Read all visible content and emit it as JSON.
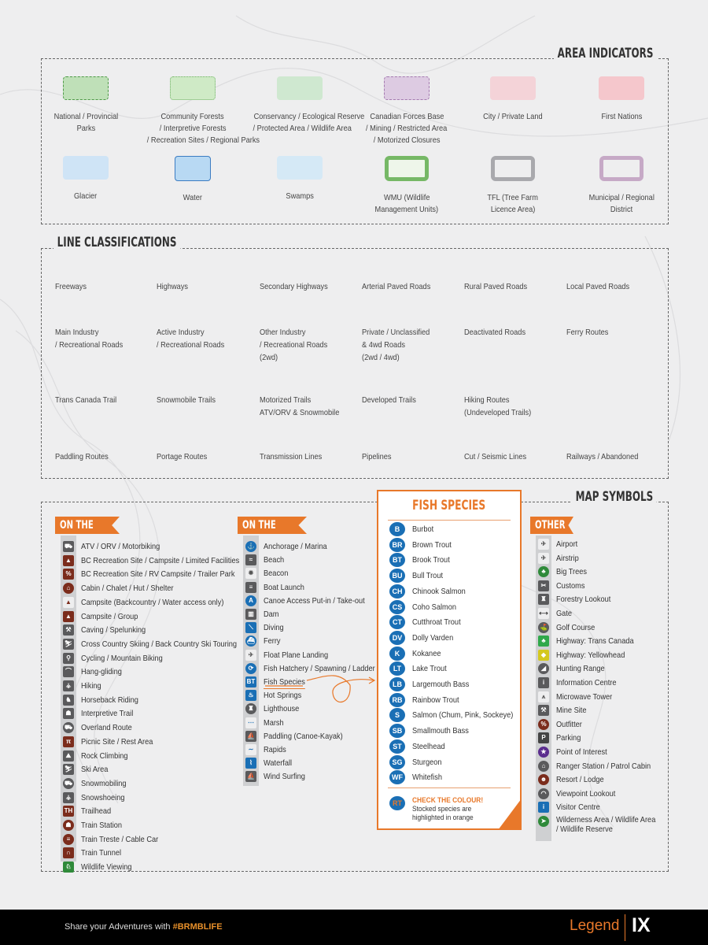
{
  "sections": {
    "area": "AREA INDICATORS",
    "lines": "LINE CLASSIFICATIONS",
    "symbols": "MAP SYMBOLS"
  },
  "area_indicators": [
    {
      "label": [
        "National / Provincial",
        "Parks"
      ],
      "fill": "#bfe0b8",
      "border": "#4f9a48",
      "style": "dashed"
    },
    {
      "label": [
        "Community Forests",
        "/ Interpretive Forests",
        "/ Recreation Sites / Regional Parks"
      ],
      "fill": "#cfeac6",
      "border": "#6fb064",
      "style": "dotted"
    },
    {
      "label": [
        "Conservancy / Ecological Reserve",
        "/ Protected Area / Wildlife Area"
      ],
      "fill": "#cfe8d0",
      "border": "#cfe8d0",
      "style": "solid"
    },
    {
      "label": [
        "Canadian Forces Base",
        "/ Mining / Restricted Area",
        "/ Motorized Closures"
      ],
      "fill": "#ddcbe2",
      "border": "#a57bb0",
      "style": "dashed"
    },
    {
      "label": [
        "City / Private Land"
      ],
      "fill": "#f4d3d8",
      "border": "#f4d3d8",
      "style": "solid"
    },
    {
      "label": [
        "First Nations"
      ],
      "fill": "#f5c7cc",
      "border": "#f5c7cc",
      "style": "solid"
    },
    {
      "label": [
        "Glacier"
      ],
      "fill": "#cfe4f6",
      "border": "#cfe4f6",
      "style": "solid"
    },
    {
      "label": [
        "Water"
      ],
      "fill": "#b8d9f3",
      "border": "#3b7cc2",
      "style": "solid"
    },
    {
      "label": [
        "Swamps"
      ],
      "fill": "#d5e9f6",
      "border": "#d5e9f6",
      "style": "solid"
    },
    {
      "label": [
        "WMU (Wildlife",
        "Management Units)"
      ],
      "fill": "#eef6ea",
      "border": "#76b866",
      "style": "thick"
    },
    {
      "label": [
        "TFL (Tree Farm",
        "Licence Area)"
      ],
      "fill": "#eeeeef",
      "border": "#a9a9ad",
      "style": "thick"
    },
    {
      "label": [
        "Municipal / Regional",
        "District"
      ],
      "fill": "#eeeeef",
      "border": "#c6a9c6",
      "style": "thick"
    }
  ],
  "line_classifications": [
    {
      "label": [
        "Freeways"
      ],
      "kind": "freeway"
    },
    {
      "label": [
        "Highways"
      ],
      "kind": "highway"
    },
    {
      "label": [
        "Secondary Highways"
      ],
      "kind": "secondary"
    },
    {
      "label": [
        "Arterial Paved Roads"
      ],
      "kind": "arterial"
    },
    {
      "label": [
        "Rural Paved Roads"
      ],
      "kind": "rural"
    },
    {
      "label": [
        "Local Paved Roads"
      ],
      "kind": "local"
    },
    {
      "label": [
        "Main Industry",
        "/ Recreational Roads"
      ],
      "kind": "main-industry"
    },
    {
      "label": [
        "Active Industry",
        "/ Recreational Roads"
      ],
      "kind": "active-industry"
    },
    {
      "label": [
        "Other Industry",
        "/ Recreational Roads",
        "(2wd)"
      ],
      "kind": "other-industry"
    },
    {
      "label": [
        "Private / Unclassified",
        "& 4wd Roads",
        "(2wd / 4wd)"
      ],
      "kind": "private"
    },
    {
      "label": [
        "Deactivated Roads"
      ],
      "kind": "deactivated"
    },
    {
      "label": [
        "Ferry Routes"
      ],
      "kind": "ferry"
    },
    {
      "label": [
        "Trans Canada Trail"
      ],
      "kind": "tct"
    },
    {
      "label": [
        "Snowmobile Trails"
      ],
      "kind": "snowmobile"
    },
    {
      "label": [
        "Motorized Trails",
        "ATV/ORV & Snowmobile"
      ],
      "kind": "motorized"
    },
    {
      "label": [
        "Developed Trails"
      ],
      "kind": "developed"
    },
    {
      "label": [
        "Hiking Routes",
        "(Undeveloped Trails)"
      ],
      "kind": "hiking"
    },
    {
      "label": [
        ""
      ],
      "kind": "none"
    },
    {
      "label": [
        "Paddling Routes"
      ],
      "kind": "paddling"
    },
    {
      "label": [
        "Portage Routes"
      ],
      "kind": "portage"
    },
    {
      "label": [
        "Transmission Lines"
      ],
      "kind": "transmission"
    },
    {
      "label": [
        "Pipelines"
      ],
      "kind": "pipeline"
    },
    {
      "label": [
        "Cut / Seismic Lines"
      ],
      "kind": "cutline"
    },
    {
      "label": [
        "Railways / Abandoned"
      ],
      "kind": "railway"
    }
  ],
  "on_the_trail": {
    "title": "ON THE TRAIL",
    "items": [
      {
        "label": "ATV / ORV / Motorbiking",
        "icon": "atv-icon",
        "g": "⛟",
        "c": "#5a5a5c"
      },
      {
        "label": "BC Recreation Site / Campsite / Limited Facilities",
        "icon": "rec-site-icon",
        "g": "▲",
        "c": "#7b2c1c"
      },
      {
        "label": "BC Recreation Site / RV Campsite / Trailer Park",
        "icon": "rv-campsite-icon",
        "g": "%",
        "c": "#7b2c1c"
      },
      {
        "label": "Cabin / Chalet / Hut / Shelter",
        "icon": "cabin-icon",
        "g": "⌂",
        "c": "#7b2c1c",
        "r": 1
      },
      {
        "label": "Campsite (Backcountry / Water access only)",
        "icon": "campsite-icon",
        "g": "▲",
        "c": "#eeeeef",
        "fg": "#7b2c1c"
      },
      {
        "label": "Campsite / Group",
        "icon": "group-campsite-icon",
        "g": "▲",
        "c": "#7b2c1c"
      },
      {
        "label": "Caving / Spelunking",
        "icon": "caving-icon",
        "g": "⚒",
        "c": "#5a5a5c"
      },
      {
        "label": "Cross Country Skiing / Back Country Ski Touring",
        "icon": "xc-ski-icon",
        "g": "⛷",
        "c": "#5a5a5c"
      },
      {
        "label": "Cycling / Mountain Biking",
        "icon": "cycling-icon",
        "g": "⚲",
        "c": "#5a5a5c"
      },
      {
        "label": "Hang-gliding",
        "icon": "hang-gliding-icon",
        "g": "⌒",
        "c": "#5a5a5c"
      },
      {
        "label": "Hiking",
        "icon": "hiking-icon",
        "g": "⚶",
        "c": "#5a5a5c"
      },
      {
        "label": "Horseback Riding",
        "icon": "horse-icon",
        "g": "♞",
        "c": "#5a5a5c"
      },
      {
        "label": "Interpretive Trail",
        "icon": "interpretive-trail-icon",
        "g": "☗",
        "c": "#5a5a5c"
      },
      {
        "label": "Overland Route",
        "icon": "overland-icon",
        "g": "⛟",
        "c": "#5a5a5c",
        "r": 1
      },
      {
        "label": "Picnic Site / Rest Area",
        "icon": "picnic-icon",
        "g": "π",
        "c": "#7b2c1c"
      },
      {
        "label": "Rock Climbing",
        "icon": "rock-climbing-icon",
        "g": "⛰",
        "c": "#5a5a5c"
      },
      {
        "label": "Ski Area",
        "icon": "ski-icon",
        "g": "⛷",
        "c": "#5a5a5c"
      },
      {
        "label": "Snowmobiling",
        "icon": "snowmobile-icon",
        "g": "⛟",
        "c": "#5a5a5c",
        "r": 1
      },
      {
        "label": "Snowshoeing",
        "icon": "snowshoe-icon",
        "g": "⚶",
        "c": "#5a5a5c"
      },
      {
        "label": "Trailhead",
        "icon": "trailhead-icon",
        "g": "TH",
        "c": "#7b2c1c"
      },
      {
        "label": "Train Station",
        "icon": "train-station-icon",
        "g": "☗",
        "c": "#7b2c1c",
        "r": 1
      },
      {
        "label": "Train Treste / Cable Car",
        "icon": "train-trestle-icon",
        "g": "≡",
        "c": "#7b2c1c",
        "r": 1
      },
      {
        "label": "Train Tunnel",
        "icon": "train-tunnel-icon",
        "g": "∩",
        "c": "#7b2c1c"
      },
      {
        "label": "Wildlife Viewing",
        "icon": "wildlife-viewing-icon",
        "g": "♘",
        "c": "#2f8a3a"
      }
    ]
  },
  "on_the_water": {
    "title": "ON THE WATER",
    "items": [
      {
        "label": "Anchorage / Marina",
        "icon": "anchor-icon",
        "g": "⚓",
        "c": "#1a6fb5",
        "r": 1
      },
      {
        "label": "Beach",
        "icon": "beach-icon",
        "g": "≈",
        "c": "#5a5a5c"
      },
      {
        "label": "Beacon",
        "icon": "beacon-icon",
        "g": "✹",
        "c": "#eeeeef",
        "fg": "#555"
      },
      {
        "label": "Boat Launch",
        "icon": "boat-launch-icon",
        "g": "≡",
        "c": "#5a5a5c"
      },
      {
        "label": "Canoe Access Put-in / Take-out",
        "icon": "canoe-access-icon",
        "g": "A",
        "c": "#1a6fb5",
        "r": 1
      },
      {
        "label": "Dam",
        "icon": "dam-icon",
        "g": "▥",
        "c": "#5a5a5c"
      },
      {
        "label": "Diving",
        "icon": "diving-icon",
        "g": "⟍",
        "c": "#1a6fb5"
      },
      {
        "label": "Ferry",
        "icon": "ferry-icon",
        "g": "⛴",
        "c": "#1a6fb5",
        "r": 1
      },
      {
        "label": "Float Plane Landing",
        "icon": "float-plane-icon",
        "g": "✈",
        "c": "#eeeeef",
        "fg": "#555"
      },
      {
        "label": "Fish Hatchery / Spawning / Ladder",
        "icon": "fish-hatchery-icon",
        "g": "⟳",
        "c": "#1a6fb5",
        "r": 1
      },
      {
        "label": "Fish Species",
        "icon": "fish-species-icon",
        "g": "BT",
        "c": "#1a6fb5"
      },
      {
        "label": "Hot Springs",
        "icon": "hot-springs-icon",
        "g": "♨",
        "c": "#1a6fb5"
      },
      {
        "label": "Lighthouse",
        "icon": "lighthouse-icon",
        "g": "♜",
        "c": "#5a5a5c",
        "r": 1
      },
      {
        "label": "Marsh",
        "icon": "marsh-icon",
        "g": "⋯",
        "c": "#eeeeef",
        "fg": "#1a6fb5"
      },
      {
        "label": "Paddling (Canoe-Kayak)",
        "icon": "paddling-icon",
        "g": "⛵",
        "c": "#5a5a5c"
      },
      {
        "label": "Rapids",
        "icon": "rapids-icon",
        "g": "∼",
        "c": "#eeeeef",
        "fg": "#1a6fb5"
      },
      {
        "label": "Waterfall",
        "icon": "waterfall-icon",
        "g": "⌇",
        "c": "#1a6fb5"
      },
      {
        "label": "Wind Surfing",
        "icon": "wind-surfing-icon",
        "g": "⛵",
        "c": "#5a5a5c"
      }
    ]
  },
  "fish_species": {
    "title": "FISH SPECIES",
    "items": [
      {
        "code": "B",
        "name": "Burbot"
      },
      {
        "code": "BR",
        "name": "Brown Trout"
      },
      {
        "code": "BT",
        "name": "Brook Trout"
      },
      {
        "code": "BU",
        "name": "Bull Trout"
      },
      {
        "code": "CH",
        "name": "Chinook Salmon"
      },
      {
        "code": "CS",
        "name": "Coho Salmon"
      },
      {
        "code": "CT",
        "name": "Cutthroat Trout"
      },
      {
        "code": "DV",
        "name": "Dolly Varden"
      },
      {
        "code": "K",
        "name": "Kokanee"
      },
      {
        "code": "LT",
        "name": "Lake Trout"
      },
      {
        "code": "LB",
        "name": "Largemouth Bass"
      },
      {
        "code": "RB",
        "name": "Rainbow Trout"
      },
      {
        "code": "S",
        "name": "Salmon (Chum, Pink, Sockeye)"
      },
      {
        "code": "SB",
        "name": "Smallmouth Bass"
      },
      {
        "code": "ST",
        "name": "Steelhead"
      },
      {
        "code": "SG",
        "name": "Sturgeon"
      },
      {
        "code": "WF",
        "name": "Whitefish"
      }
    ],
    "note": {
      "code": "RT",
      "heading": "CHECK THE COLOUR!",
      "text": [
        "Stocked species are",
        "highlighted in orange"
      ]
    },
    "badge_color": "#1a6fb5",
    "stocked_color": "#e8782a"
  },
  "other": {
    "title": "OTHER",
    "items": [
      {
        "label": "Airport",
        "icon": "airport-icon",
        "g": "✈",
        "c": "#eeeeef",
        "fg": "#555"
      },
      {
        "label": "Airstrip",
        "icon": "airstrip-icon",
        "g": "✈",
        "c": "#eeeeef",
        "fg": "#555"
      },
      {
        "label": "Big Trees",
        "icon": "big-trees-icon",
        "g": "♣",
        "c": "#2f8a3a",
        "r": 1
      },
      {
        "label": "Customs",
        "icon": "customs-icon",
        "g": "✂",
        "c": "#5a5a5c"
      },
      {
        "label": "Forestry Lookout",
        "icon": "forestry-lookout-icon",
        "g": "♜",
        "c": "#5a5a5c"
      },
      {
        "label": "Gate",
        "icon": "gate-icon",
        "g": "⟷",
        "c": "#eeeeef",
        "fg": "#333"
      },
      {
        "label": "Golf Course",
        "icon": "golf-icon",
        "g": "⛳",
        "c": "#5a5a5c",
        "r": 1
      },
      {
        "label": "Highway: Trans Canada",
        "icon": "trans-canada-icon",
        "g": "♣",
        "c": "#2fa84a"
      },
      {
        "label": "Highway: Yellowhead",
        "icon": "yellowhead-icon",
        "g": "◆",
        "c": "#d4c81e"
      },
      {
        "label": "Hunting Range",
        "icon": "hunting-range-icon",
        "g": "◢",
        "c": "#5a5a5c",
        "r": 1
      },
      {
        "label": "Information Centre",
        "icon": "information-icon",
        "g": "i",
        "c": "#5a5a5c"
      },
      {
        "label": "Microwave Tower",
        "icon": "microwave-tower-icon",
        "g": "⩚",
        "c": "#eeeeef",
        "fg": "#555"
      },
      {
        "label": "Mine Site",
        "icon": "mine-site-icon",
        "g": "⚒",
        "c": "#5a5a5c"
      },
      {
        "label": "Outfitter",
        "icon": "outfitter-icon",
        "g": "%",
        "c": "#7b2c1c",
        "r": 1
      },
      {
        "label": "Parking",
        "icon": "parking-icon",
        "g": "P",
        "c": "#444"
      },
      {
        "label": "Point of Interest",
        "icon": "point-of-interest-icon",
        "g": "★",
        "c": "#5b2d8e",
        "r": 1
      },
      {
        "label": "Ranger Station / Patrol Cabin",
        "icon": "ranger-station-icon",
        "g": "⌂",
        "c": "#5a5a5c",
        "r": 1
      },
      {
        "label": "Resort / Lodge",
        "icon": "resort-icon",
        "g": "☻",
        "c": "#7b2c1c",
        "r": 1
      },
      {
        "label": "Viewpoint Lookout",
        "icon": "viewpoint-icon",
        "g": "◠",
        "c": "#5a5a5c",
        "r": 1
      },
      {
        "label": "Visitor Centre",
        "icon": "visitor-centre-icon",
        "g": "i",
        "c": "#1a6fb5"
      },
      {
        "label": "Wilderness Area / Wildlife Area",
        "label2": "/ Wildlife Reserve",
        "icon": "wilderness-area-icon",
        "g": "➤",
        "c": "#2f8a3a",
        "r": 1
      }
    ]
  },
  "footer": {
    "share": "Share your Adventures with",
    "hashtag": "#BRMBLIFE",
    "legend": "Legend",
    "page": "IX"
  },
  "colors": {
    "accent": "#e8782a",
    "fish_blue": "#1a6fb5",
    "background": "#eeeeef",
    "footer": "#000000"
  }
}
